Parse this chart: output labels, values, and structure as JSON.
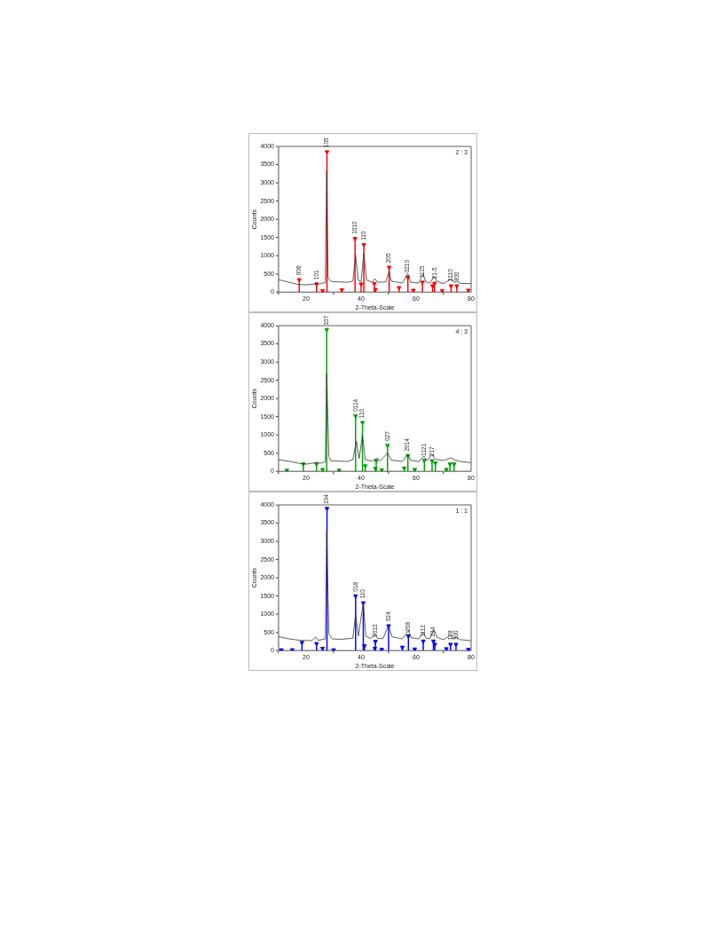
{
  "chart_data": [
    {
      "type": "line",
      "xlabel": "2-Theta-Scale",
      "ylabel": "Counts",
      "xlim": [
        10,
        80
      ],
      "xticks": [
        20,
        40,
        60,
        80
      ],
      "ylim": [
        0,
        4000
      ],
      "yticks": [
        0,
        500,
        1000,
        1500,
        2000,
        2500,
        3000,
        3500,
        4000
      ],
      "series": [
        {
          "color": "#333333",
          "marker": "none",
          "x": [
            10,
            15,
            17,
            20,
            23,
            23.8,
            24.5,
            27,
            27.5,
            28,
            29,
            35,
            37,
            38,
            39,
            40,
            41,
            42,
            44,
            45,
            46,
            49,
            50.2,
            51,
            55,
            57,
            58,
            61,
            62.5,
            63.5,
            65,
            66.5,
            67.5,
            70,
            72.8,
            74,
            74.8,
            76,
            80
          ],
          "values": [
            340,
            250,
            210,
            200,
            220,
            260,
            220,
            260,
            3320,
            400,
            290,
            270,
            300,
            1010,
            320,
            290,
            1060,
            330,
            270,
            370,
            270,
            280,
            580,
            300,
            250,
            510,
            270,
            250,
            500,
            280,
            250,
            420,
            300,
            230,
            370,
            260,
            300,
            240,
            230
          ]
        },
        {
          "type": "lollipop",
          "color": "#ff0000",
          "marker": "triangle",
          "x": [
            17.5,
            23.8,
            26,
            27.6,
            33,
            37.8,
            40,
            41,
            44.8,
            45.2,
            50.2,
            53.8,
            57,
            59,
            62.3,
            66,
            66.7,
            69.5,
            72.7,
            74.8,
            79
          ],
          "values": [
            340,
            220,
            40,
            3850,
            60,
            1470,
            220,
            1300,
            230,
            70,
            680,
            120,
            410,
            50,
            270,
            170,
            240,
            40,
            170,
            170,
            50
          ]
        }
      ],
      "annotations": [
        "2 : 3",
        {
          "text": "006",
          "x": 17.5,
          "y": 340
        },
        {
          "text": "101",
          "x": 23.8,
          "y": 220
        },
        {
          "text": "105",
          "x": 27.6,
          "y": 3850
        },
        {
          "text": "1010",
          "x": 37.8,
          "y": 1470
        },
        {
          "text": "110",
          "x": 41,
          "y": 1300
        },
        {
          "text": "205",
          "x": 50.2,
          "y": 680
        },
        {
          "text": "0210",
          "x": 57,
          "y": 410
        },
        {
          "text": "1115",
          "x": 62.3,
          "y": 270
        },
        {
          "text": "21-5",
          "x": 66.7,
          "y": 240
        },
        {
          "text": "2110",
          "x": 72.7,
          "y": 170
        },
        {
          "text": "300",
          "x": 74.8,
          "y": 170
        }
      ]
    },
    {
      "type": "line",
      "xlabel": "2-Theta-Scale",
      "ylabel": "Counts",
      "xlim": [
        10,
        80
      ],
      "xticks": [
        20,
        40,
        60,
        80
      ],
      "ylim": [
        0,
        4000
      ],
      "yticks": [
        0,
        500,
        1000,
        1500,
        2000,
        2500,
        3000,
        3500,
        4000
      ],
      "series": [
        {
          "color": "#333333",
          "marker": "none",
          "x": [
            10,
            15,
            18,
            20,
            23,
            24,
            25,
            27,
            27.5,
            28.3,
            29,
            35,
            37,
            38.3,
            39.3,
            40.5,
            41.5,
            44,
            45.8,
            47,
            49.6,
            51,
            55,
            57,
            58,
            61,
            62.8,
            64,
            65.7,
            67,
            70,
            72.5,
            74,
            76,
            80
          ],
          "values": [
            320,
            260,
            210,
            200,
            230,
            250,
            220,
            260,
            2680,
            400,
            290,
            270,
            320,
            830,
            350,
            1000,
            320,
            280,
            360,
            290,
            500,
            310,
            270,
            460,
            300,
            270,
            420,
            300,
            460,
            330,
            300,
            370,
            320,
            270,
            240
          ]
        },
        {
          "type": "lollipop",
          "color": "#00a000",
          "marker": "triangle",
          "x": [
            13,
            19,
            23.8,
            26,
            27.5,
            32,
            38,
            40.5,
            41.5,
            45.2,
            45.5,
            47.5,
            49.6,
            55.7,
            57,
            59.5,
            63,
            65.8,
            67,
            71,
            72.3,
            73.8
          ],
          "values": [
            30,
            200,
            200,
            50,
            3890,
            30,
            1520,
            1340,
            150,
            80,
            290,
            40,
            710,
            90,
            430,
            50,
            300,
            290,
            230,
            50,
            200,
            200
          ]
        }
      ],
      "annotations": [
        "4 : 3",
        {
          "text": "107",
          "x": 27.5,
          "y": 3890
        },
        {
          "text": "0114",
          "x": 38,
          "y": 1520
        },
        {
          "text": "110",
          "x": 40.5,
          "y": 1340
        },
        {
          "text": "027",
          "x": 49.6,
          "y": 710
        },
        {
          "text": "2014",
          "x": 57,
          "y": 430
        },
        {
          "text": "1121",
          "x": 63,
          "y": 300
        },
        {
          "text": "217",
          "x": 65.8,
          "y": 290
        }
      ]
    },
    {
      "type": "line",
      "xlabel": "2-Theta-Scale",
      "ylabel": "Counts",
      "xlim": [
        10,
        80
      ],
      "xticks": [
        20,
        40,
        60,
        80
      ],
      "ylim": [
        0,
        4000
      ],
      "yticks": [
        0,
        500,
        1000,
        1500,
        2000,
        2500,
        3000,
        3500,
        4000
      ],
      "series": [
        {
          "color": "#333333",
          "marker": "none",
          "x": [
            10,
            14,
            18,
            20,
            22,
            23.5,
            24.3,
            27,
            27.5,
            28.3,
            29.5,
            33,
            37,
            38,
            39,
            40.8,
            41.7,
            43.5,
            45,
            46,
            48,
            50,
            51.2,
            55,
            57.2,
            58.3,
            61,
            62.5,
            63.6,
            65,
            66.5,
            67.7,
            70,
            72.5,
            73.6,
            74.6,
            76,
            80
          ],
          "values": [
            380,
            320,
            280,
            280,
            270,
            370,
            280,
            320,
            3270,
            450,
            320,
            310,
            340,
            1000,
            400,
            1320,
            400,
            330,
            450,
            330,
            330,
            700,
            380,
            320,
            550,
            350,
            320,
            500,
            340,
            330,
            570,
            360,
            300,
            420,
            330,
            380,
            300,
            270
          ]
        },
        {
          "type": "lollipop",
          "color": "#0000ff",
          "marker": "triangle",
          "x": [
            11,
            15,
            18.5,
            23.8,
            26,
            27.6,
            30,
            38,
            40.8,
            41.2,
            45,
            45.2,
            47.5,
            50,
            55,
            57.2,
            59.5,
            62.6,
            66.3,
            66.8,
            71,
            72.5,
            74.5,
            79
          ],
          "values": [
            20,
            20,
            220,
            190,
            60,
            3900,
            20,
            1500,
            1310,
            130,
            60,
            250,
            30,
            680,
            90,
            400,
            40,
            260,
            260,
            170,
            50,
            170,
            170,
            30
          ]
        }
      ],
      "annotations": [
        "1 : 1",
        {
          "text": "104",
          "x": 27.6,
          "y": 3900
        },
        {
          "text": "018",
          "x": 38,
          "y": 1500
        },
        {
          "text": "110",
          "x": 40.8,
          "y": 1310
        },
        {
          "text": "0012",
          "x": 45.2,
          "y": 250
        },
        {
          "text": "024",
          "x": 50,
          "y": 680
        },
        {
          "text": "208",
          "x": 57.2,
          "y": 400
        },
        {
          "text": "1112",
          "x": 62.6,
          "y": 260
        },
        {
          "text": "234",
          "x": 66.3,
          "y": 260
        },
        {
          "text": "128",
          "x": 72.5,
          "y": 170
        },
        {
          "text": "300",
          "x": 74.5,
          "y": 170
        }
      ]
    }
  ]
}
